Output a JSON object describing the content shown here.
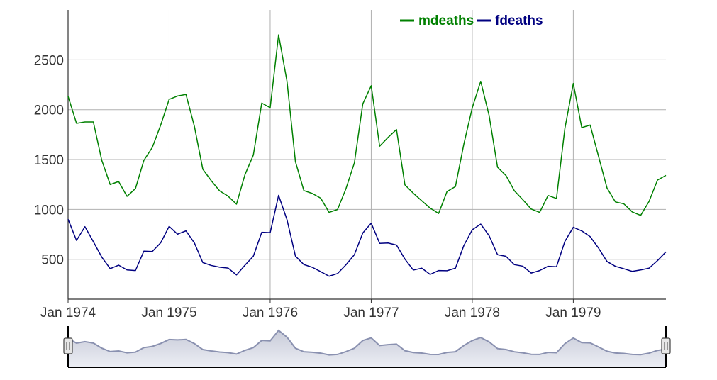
{
  "chart_data": {
    "type": "line",
    "x": [
      "1974-01",
      "1974-02",
      "1974-03",
      "1974-04",
      "1974-05",
      "1974-06",
      "1974-07",
      "1974-08",
      "1974-09",
      "1974-10",
      "1974-11",
      "1974-12",
      "1975-01",
      "1975-02",
      "1975-03",
      "1975-04",
      "1975-05",
      "1975-06",
      "1975-07",
      "1975-08",
      "1975-09",
      "1975-10",
      "1975-11",
      "1975-12",
      "1976-01",
      "1976-02",
      "1976-03",
      "1976-04",
      "1976-05",
      "1976-06",
      "1976-07",
      "1976-08",
      "1976-09",
      "1976-10",
      "1976-11",
      "1976-12",
      "1977-01",
      "1977-02",
      "1977-03",
      "1977-04",
      "1977-05",
      "1977-06",
      "1977-07",
      "1977-08",
      "1977-09",
      "1977-10",
      "1977-11",
      "1977-12",
      "1978-01",
      "1978-02",
      "1978-03",
      "1978-04",
      "1978-05",
      "1978-06",
      "1978-07",
      "1978-08",
      "1978-09",
      "1978-10",
      "1978-11",
      "1978-12",
      "1979-01",
      "1979-02",
      "1979-03",
      "1979-04",
      "1979-05",
      "1979-06",
      "1979-07",
      "1979-08",
      "1979-09",
      "1979-10",
      "1979-11",
      "1979-12"
    ],
    "series": [
      {
        "name": "mdeaths",
        "color": "#008000",
        "values": [
          2134,
          1863,
          1877,
          1877,
          1492,
          1249,
          1280,
          1131,
          1209,
          1492,
          1621,
          1846,
          2103,
          2137,
          2153,
          1833,
          1403,
          1288,
          1186,
          1133,
          1053,
          1347,
          1545,
          2066,
          2020,
          2750,
          2283,
          1479,
          1189,
          1160,
          1113,
          970,
          999,
          1208,
          1467,
          2059,
          2240,
          1634,
          1722,
          1801,
          1246,
          1162,
          1087,
          1013,
          959,
          1179,
          1229,
          1655,
          2019,
          2284,
          1942,
          1423,
          1340,
          1187,
          1098,
          1004,
          970,
          1140,
          1110,
          1812,
          2263,
          1820,
          1846,
          1531,
          1215,
          1075,
          1056,
          975,
          940,
          1081,
          1294,
          1341
        ]
      },
      {
        "name": "fdeaths",
        "color": "#000080",
        "values": [
          901,
          689,
          827,
          677,
          522,
          406,
          441,
          393,
          387,
          582,
          578,
          666,
          830,
          752,
          785,
          664,
          467,
          438,
          421,
          412,
          343,
          440,
          531,
          771,
          767,
          1141,
          896,
          532,
          447,
          420,
          376,
          330,
          357,
          445,
          546,
          764,
          862,
          660,
          663,
          643,
          502,
          392,
          411,
          348,
          387,
          385,
          411,
          638,
          796,
          853,
          737,
          546,
          530,
          446,
          431,
          362,
          387,
          430,
          425,
          679,
          821,
          785,
          727,
          612,
          478,
          429,
          405,
          379,
          393,
          411,
          487,
          574
        ]
      }
    ],
    "xticks": [
      "Jan 1974",
      "Jan 1975",
      "Jan 1976",
      "Jan 1977",
      "Jan 1978",
      "Jan 1979"
    ],
    "yticks": [
      "500",
      "1000",
      "1500",
      "2000",
      "2500"
    ],
    "ylim": [
      100,
      3000
    ],
    "legend_position": "top-right",
    "range_selector": {
      "series_shown": "total",
      "range": [
        "1974-01",
        "1979-12"
      ]
    }
  }
}
